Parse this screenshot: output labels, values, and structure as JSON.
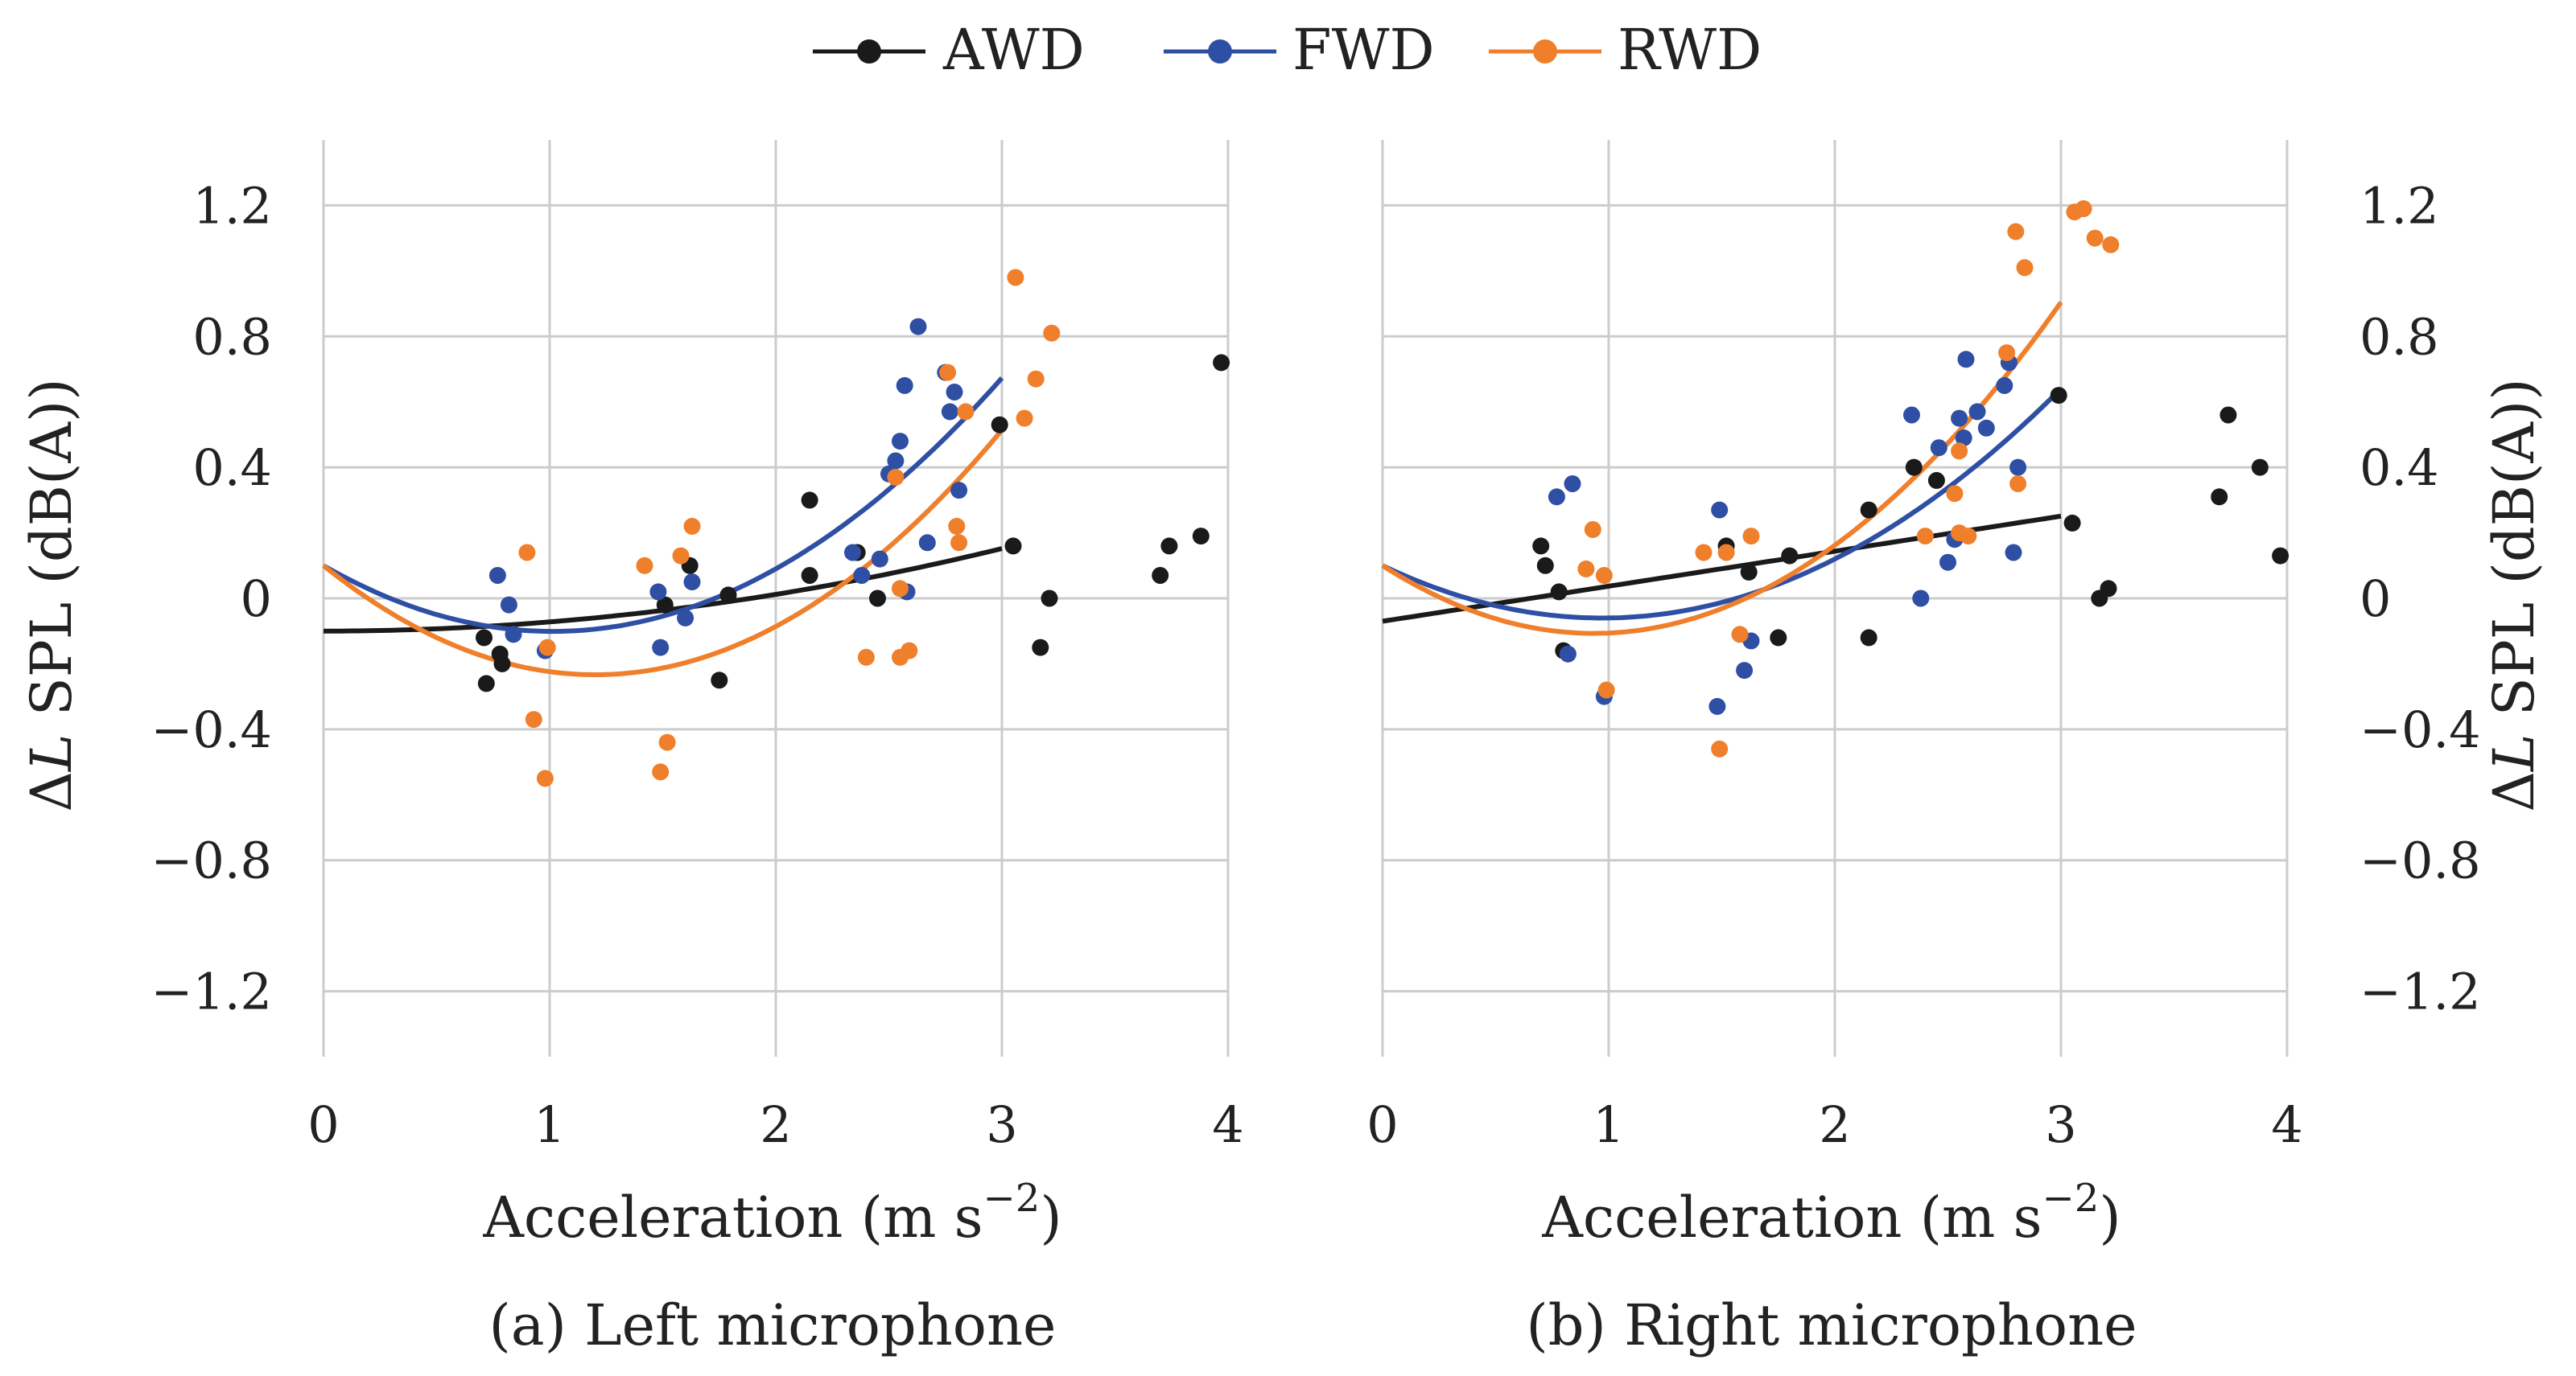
{
  "legend": [
    {
      "name": "AWD",
      "color": "#1a1a1a"
    },
    {
      "name": "FWD",
      "color": "#2e4fa3"
    },
    {
      "name": "RWD",
      "color": "#f07f2b"
    }
  ],
  "axis_text": {
    "xlabel_prefix": "Acceleration (m s",
    "xlabel_exp": "−2",
    "xlabel_suffix": ")",
    "ylabel_delta": "Δ",
    "ylabel_L": "L",
    "ylabel_rest": " SPL (dB(A))"
  },
  "chart_data": [
    {
      "type": "scatter",
      "caption": "(a) Left microphone",
      "xlabel": "Acceleration (m s−2)",
      "ylabel": "ΔL SPL (dB(A))",
      "xlim": [
        0,
        4
      ],
      "ylim": [
        -1.4,
        1.4
      ],
      "xticks": [
        "0",
        "1",
        "2",
        "3",
        "4"
      ],
      "yticks": [
        "−1.2",
        "−0.8",
        "−0.4",
        "0",
        "0.4",
        "0.8",
        "1.2"
      ],
      "grid": true,
      "series": [
        {
          "name": "AWD",
          "color": "#1a1a1a",
          "points": [
            [
              0.71,
              -0.12
            ],
            [
              0.72,
              -0.26
            ],
            [
              0.78,
              -0.17
            ],
            [
              0.79,
              -0.2
            ],
            [
              1.51,
              -0.02
            ],
            [
              1.62,
              0.1
            ],
            [
              1.75,
              -0.25
            ],
            [
              1.79,
              0.01
            ],
            [
              2.15,
              0.3
            ],
            [
              2.15,
              0.07
            ],
            [
              2.36,
              0.14
            ],
            [
              2.45,
              0.0
            ],
            [
              2.99,
              0.53
            ],
            [
              3.05,
              0.16
            ],
            [
              3.17,
              -0.15
            ],
            [
              3.21,
              0.0
            ],
            [
              3.7,
              0.07
            ],
            [
              3.74,
              0.16
            ],
            [
              3.88,
              0.19
            ],
            [
              3.97,
              0.72
            ]
          ],
          "fit": [
            -0.1,
            0.0,
            0.028
          ]
        },
        {
          "name": "FWD",
          "color": "#2e4fa3",
          "points": [
            [
              0.77,
              0.07
            ],
            [
              0.82,
              -0.02
            ],
            [
              0.84,
              -0.11
            ],
            [
              0.98,
              -0.16
            ],
            [
              1.48,
              0.02
            ],
            [
              1.49,
              -0.15
            ],
            [
              1.6,
              -0.06
            ],
            [
              1.63,
              0.05
            ],
            [
              2.34,
              0.14
            ],
            [
              2.38,
              0.07
            ],
            [
              2.46,
              0.12
            ],
            [
              2.5,
              0.38
            ],
            [
              2.53,
              0.42
            ],
            [
              2.55,
              0.48
            ],
            [
              2.57,
              0.65
            ],
            [
              2.58,
              0.02
            ],
            [
              2.63,
              0.83
            ],
            [
              2.67,
              0.17
            ],
            [
              2.75,
              0.69
            ],
            [
              2.77,
              0.57
            ],
            [
              2.79,
              0.63
            ],
            [
              2.81,
              0.33
            ]
          ],
          "fit": [
            0.1,
            -0.397,
            0.196
          ]
        },
        {
          "name": "RWD",
          "color": "#f07f2b",
          "points": [
            [
              0.9,
              0.14
            ],
            [
              0.93,
              -0.37
            ],
            [
              0.98,
              -0.55
            ],
            [
              0.99,
              -0.15
            ],
            [
              1.42,
              0.1
            ],
            [
              1.49,
              -0.53
            ],
            [
              1.52,
              -0.44
            ],
            [
              1.58,
              0.13
            ],
            [
              1.63,
              0.22
            ],
            [
              2.4,
              -0.18
            ],
            [
              2.53,
              0.37
            ],
            [
              2.55,
              0.03
            ],
            [
              2.55,
              -0.18
            ],
            [
              2.59,
              -0.16
            ],
            [
              2.76,
              0.69
            ],
            [
              2.8,
              0.22
            ],
            [
              2.81,
              0.17
            ],
            [
              2.84,
              0.57
            ],
            [
              3.06,
              0.98
            ],
            [
              3.1,
              0.55
            ],
            [
              3.15,
              0.67
            ],
            [
              3.22,
              0.81
            ]
          ],
          "fit": [
            0.1,
            -0.555,
            0.231
          ]
        }
      ]
    },
    {
      "type": "scatter",
      "caption": "(b) Right microphone",
      "xlabel": "Acceleration (m s−2)",
      "ylabel": "ΔL SPL (dB(A))",
      "xlim": [
        0,
        4
      ],
      "ylim": [
        -1.4,
        1.4
      ],
      "xticks": [
        "0",
        "1",
        "2",
        "3",
        "4"
      ],
      "yticks": [
        "−1.2",
        "−0.8",
        "−0.4",
        "0",
        "0.4",
        "0.8",
        "1.2"
      ],
      "grid": true,
      "series": [
        {
          "name": "AWD",
          "color": "#1a1a1a",
          "points": [
            [
              0.7,
              0.16
            ],
            [
              0.72,
              0.1
            ],
            [
              0.78,
              0.02
            ],
            [
              0.8,
              -0.16
            ],
            [
              1.52,
              0.16
            ],
            [
              1.62,
              0.08
            ],
            [
              1.75,
              -0.12
            ],
            [
              1.8,
              0.13
            ],
            [
              2.15,
              0.27
            ],
            [
              2.15,
              -0.12
            ],
            [
              2.35,
              0.4
            ],
            [
              2.45,
              0.36
            ],
            [
              2.99,
              0.62
            ],
            [
              3.05,
              0.23
            ],
            [
              3.17,
              0.0
            ],
            [
              3.21,
              0.03
            ],
            [
              3.7,
              0.31
            ],
            [
              3.74,
              0.56
            ],
            [
              3.88,
              0.4
            ],
            [
              3.97,
              0.13
            ]
          ],
          "fit": [
            -0.07,
            0.107,
            0.0
          ]
        },
        {
          "name": "FWD",
          "color": "#2e4fa3",
          "points": [
            [
              0.77,
              0.31
            ],
            [
              0.82,
              -0.17
            ],
            [
              0.84,
              0.35
            ],
            [
              0.98,
              -0.3
            ],
            [
              1.48,
              -0.33
            ],
            [
              1.49,
              0.27
            ],
            [
              1.6,
              -0.22
            ],
            [
              1.63,
              -0.13
            ],
            [
              2.34,
              0.56
            ],
            [
              2.38,
              0.0
            ],
            [
              2.46,
              0.46
            ],
            [
              2.5,
              0.11
            ],
            [
              2.53,
              0.18
            ],
            [
              2.55,
              0.55
            ],
            [
              2.57,
              0.49
            ],
            [
              2.58,
              0.73
            ],
            [
              2.63,
              0.57
            ],
            [
              2.67,
              0.52
            ],
            [
              2.75,
              0.65
            ],
            [
              2.77,
              0.72
            ],
            [
              2.79,
              0.14
            ],
            [
              2.81,
              0.4
            ]
          ],
          "fit": [
            0.1,
            -0.33,
            0.17
          ]
        },
        {
          "name": "RWD",
          "color": "#f07f2b",
          "points": [
            [
              0.9,
              0.09
            ],
            [
              0.93,
              0.21
            ],
            [
              0.98,
              0.07
            ],
            [
              0.99,
              -0.28
            ],
            [
              1.42,
              0.14
            ],
            [
              1.49,
              -0.46
            ],
            [
              1.52,
              0.14
            ],
            [
              1.58,
              -0.11
            ],
            [
              1.63,
              0.19
            ],
            [
              2.4,
              0.19
            ],
            [
              2.53,
              0.32
            ],
            [
              2.55,
              0.2
            ],
            [
              2.55,
              0.45
            ],
            [
              2.59,
              0.19
            ],
            [
              2.76,
              0.75
            ],
            [
              2.8,
              1.12
            ],
            [
              2.81,
              0.35
            ],
            [
              2.84,
              1.01
            ],
            [
              3.06,
              1.18
            ],
            [
              3.1,
              1.19
            ],
            [
              3.15,
              1.1
            ],
            [
              3.22,
              1.08
            ]
          ],
          "fit": [
            0.1,
            -0.443,
            0.237
          ]
        }
      ]
    }
  ]
}
